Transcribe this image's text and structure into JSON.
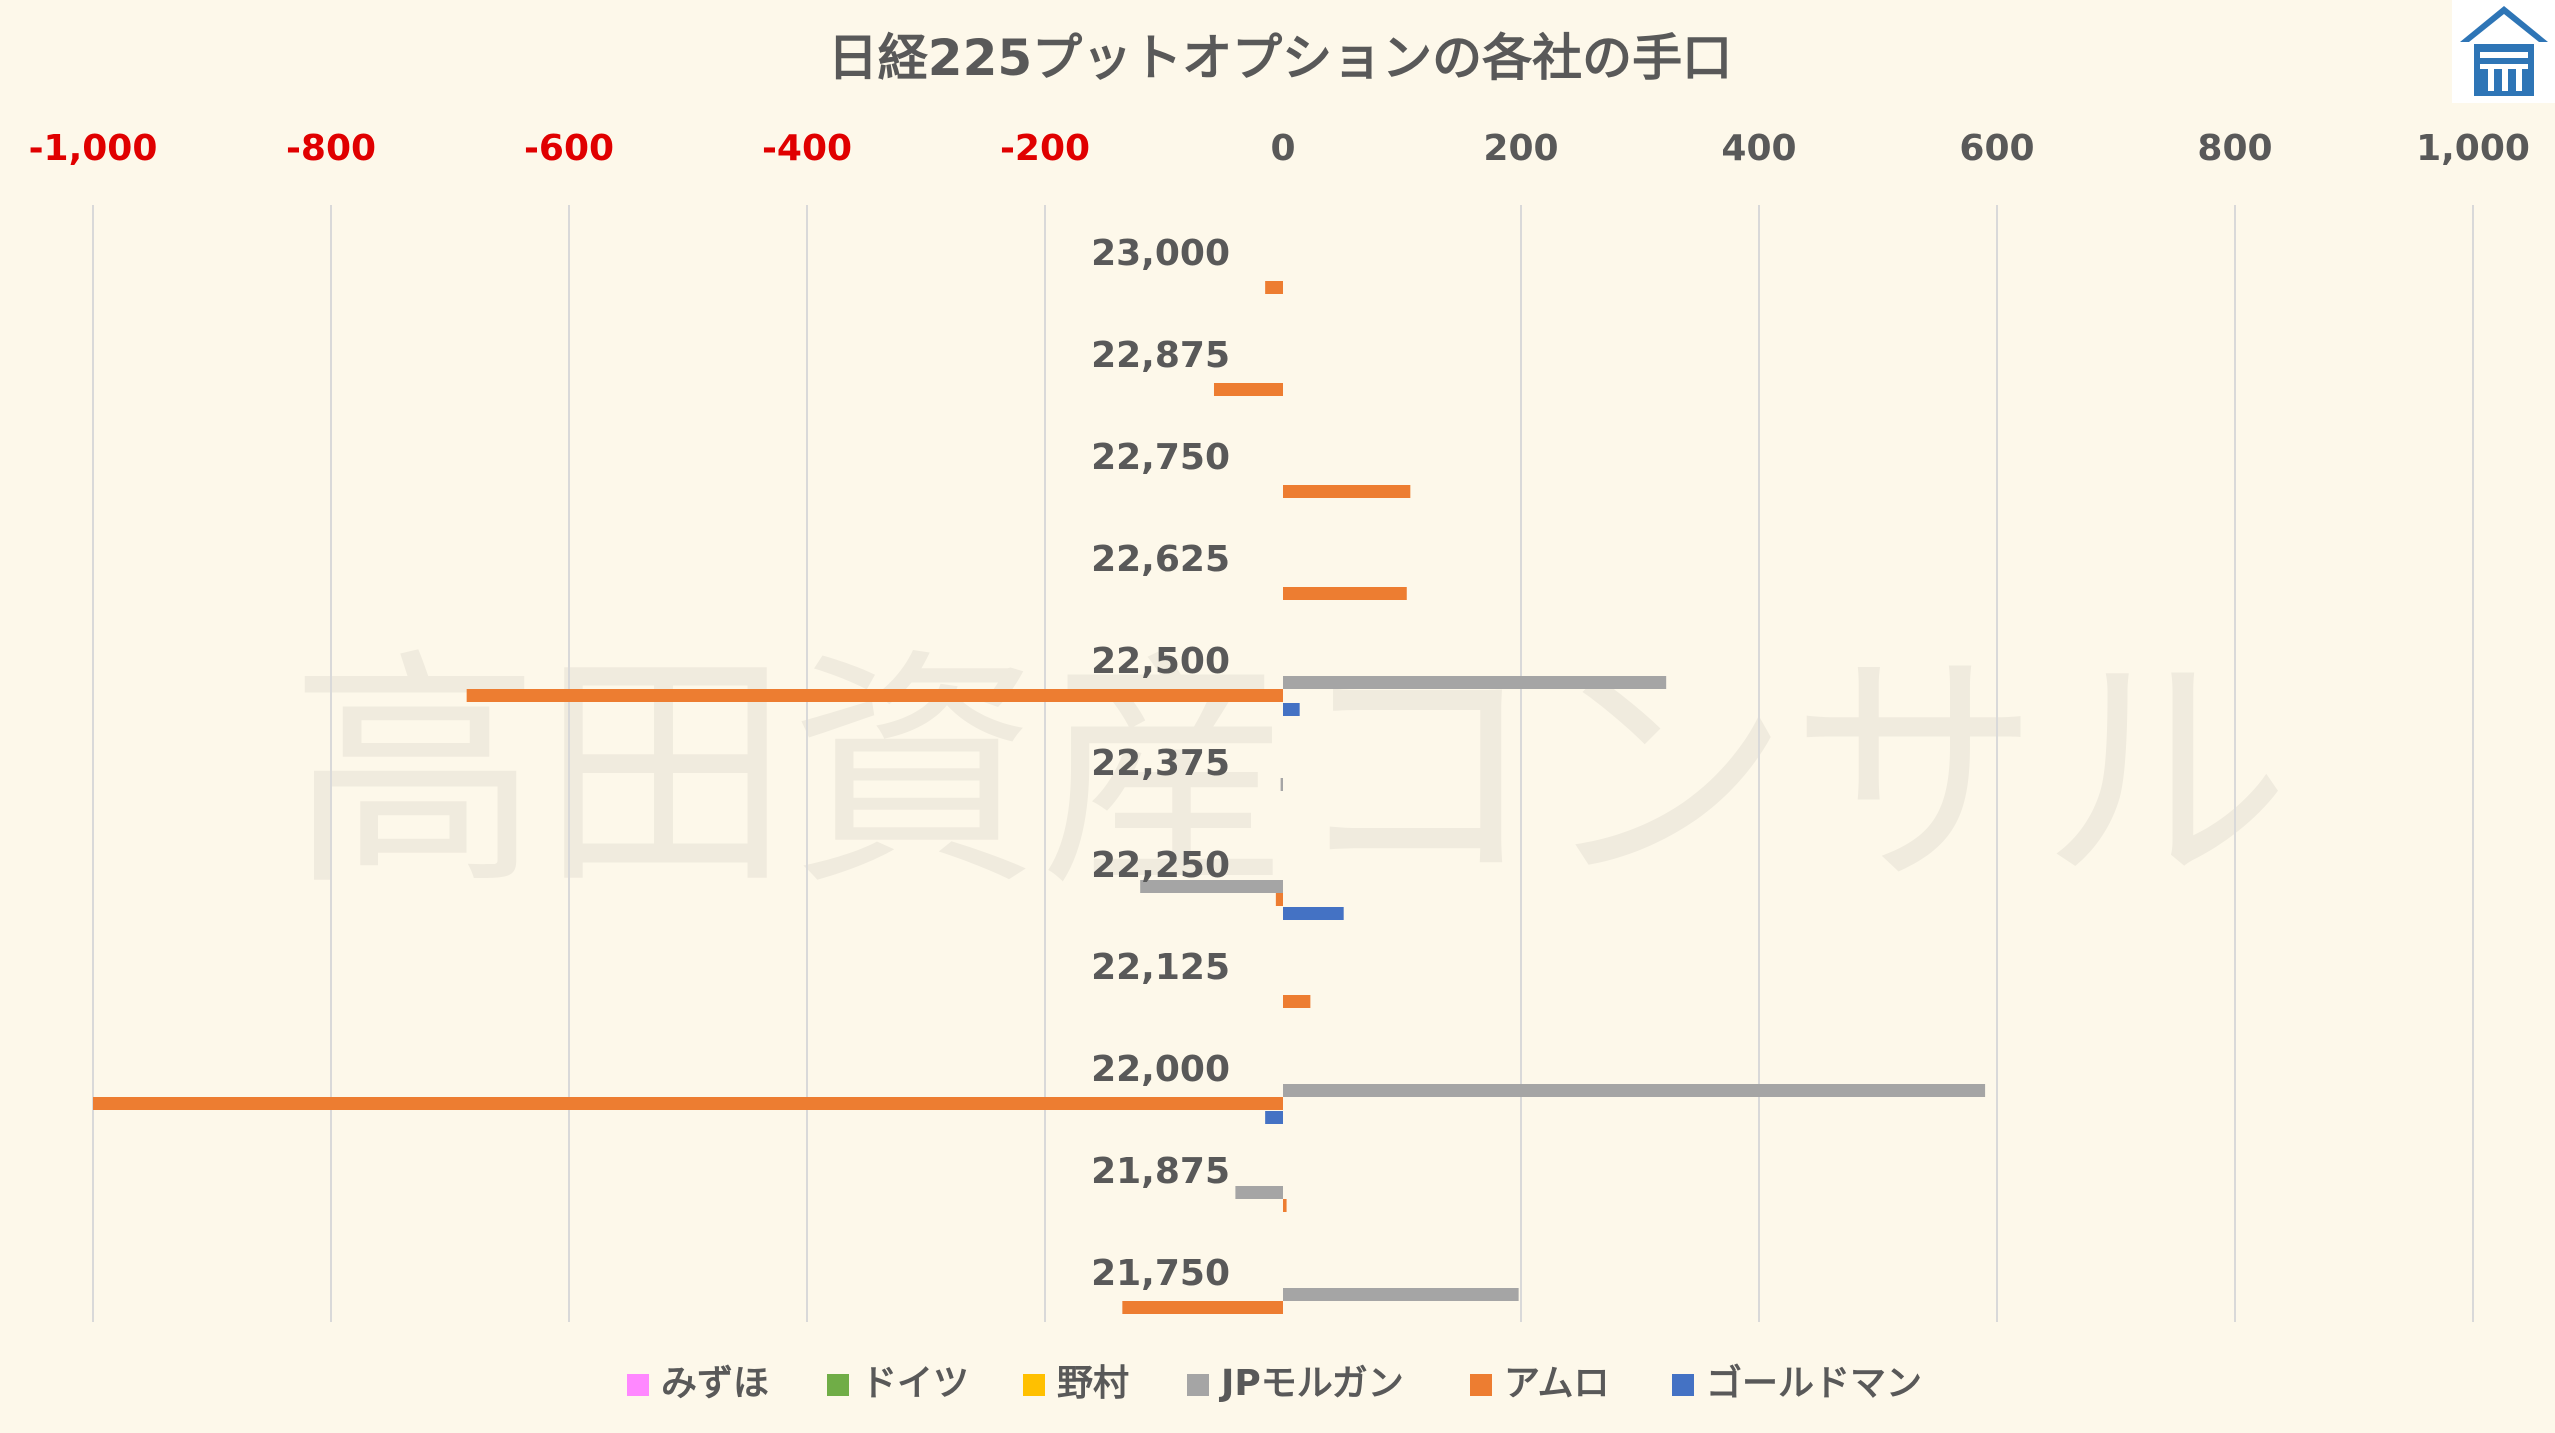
{
  "watermark": "高田資産コンサル",
  "colors": {
    "background": "#fdf8ea",
    "grid": "#d9d9d9",
    "negative_tick": "#e00000",
    "positive_tick": "#595959",
    "text": "#595959",
    "logo": "#2e75b6"
  },
  "chart_data": {
    "type": "bar",
    "orientation": "horizontal",
    "title": "日経225プットオプションの各社の手口",
    "xlim": [
      -1000,
      1000
    ],
    "x_ticks": [
      -1000,
      -800,
      -600,
      -400,
      -200,
      0,
      200,
      400,
      600,
      800,
      1000
    ],
    "x_tick_labels": [
      "-1,000",
      "-800",
      "-600",
      "-400",
      "-200",
      "0",
      "200",
      "400",
      "600",
      "800",
      "1,000"
    ],
    "categories": [
      "23,000",
      "22,875",
      "22,750",
      "22,625",
      "22,500",
      "22,375",
      "22,250",
      "22,125",
      "22,000",
      "21,875",
      "21,750"
    ],
    "grid": true,
    "legend_position": "bottom",
    "series": [
      {
        "name": "みずほ",
        "color": "#ff88ff",
        "values": [
          0,
          0,
          0,
          0,
          0,
          0,
          0,
          0,
          0,
          0,
          0
        ]
      },
      {
        "name": "ドイツ",
        "color": "#70ad47",
        "values": [
          0,
          0,
          0,
          0,
          0,
          0,
          0,
          0,
          0,
          0,
          0
        ]
      },
      {
        "name": "野村",
        "color": "#ffc000",
        "values": [
          0,
          0,
          0,
          0,
          0,
          0,
          0,
          0,
          0,
          0,
          0
        ]
      },
      {
        "name": "JPモルガン",
        "color": "#a5a5a5",
        "values": [
          0,
          0,
          0,
          0,
          322,
          -2,
          -120,
          0,
          590,
          -40,
          198
        ]
      },
      {
        "name": "アムロ",
        "color": "#ed7d31",
        "values": [
          -15,
          -58,
          107,
          104,
          -686,
          0,
          -6,
          23,
          -1000,
          3,
          -135
        ]
      },
      {
        "name": "ゴールドマン",
        "color": "#4472c4",
        "values": [
          0,
          0,
          0,
          0,
          14,
          0,
          51,
          0,
          -15,
          0,
          0
        ]
      }
    ]
  }
}
